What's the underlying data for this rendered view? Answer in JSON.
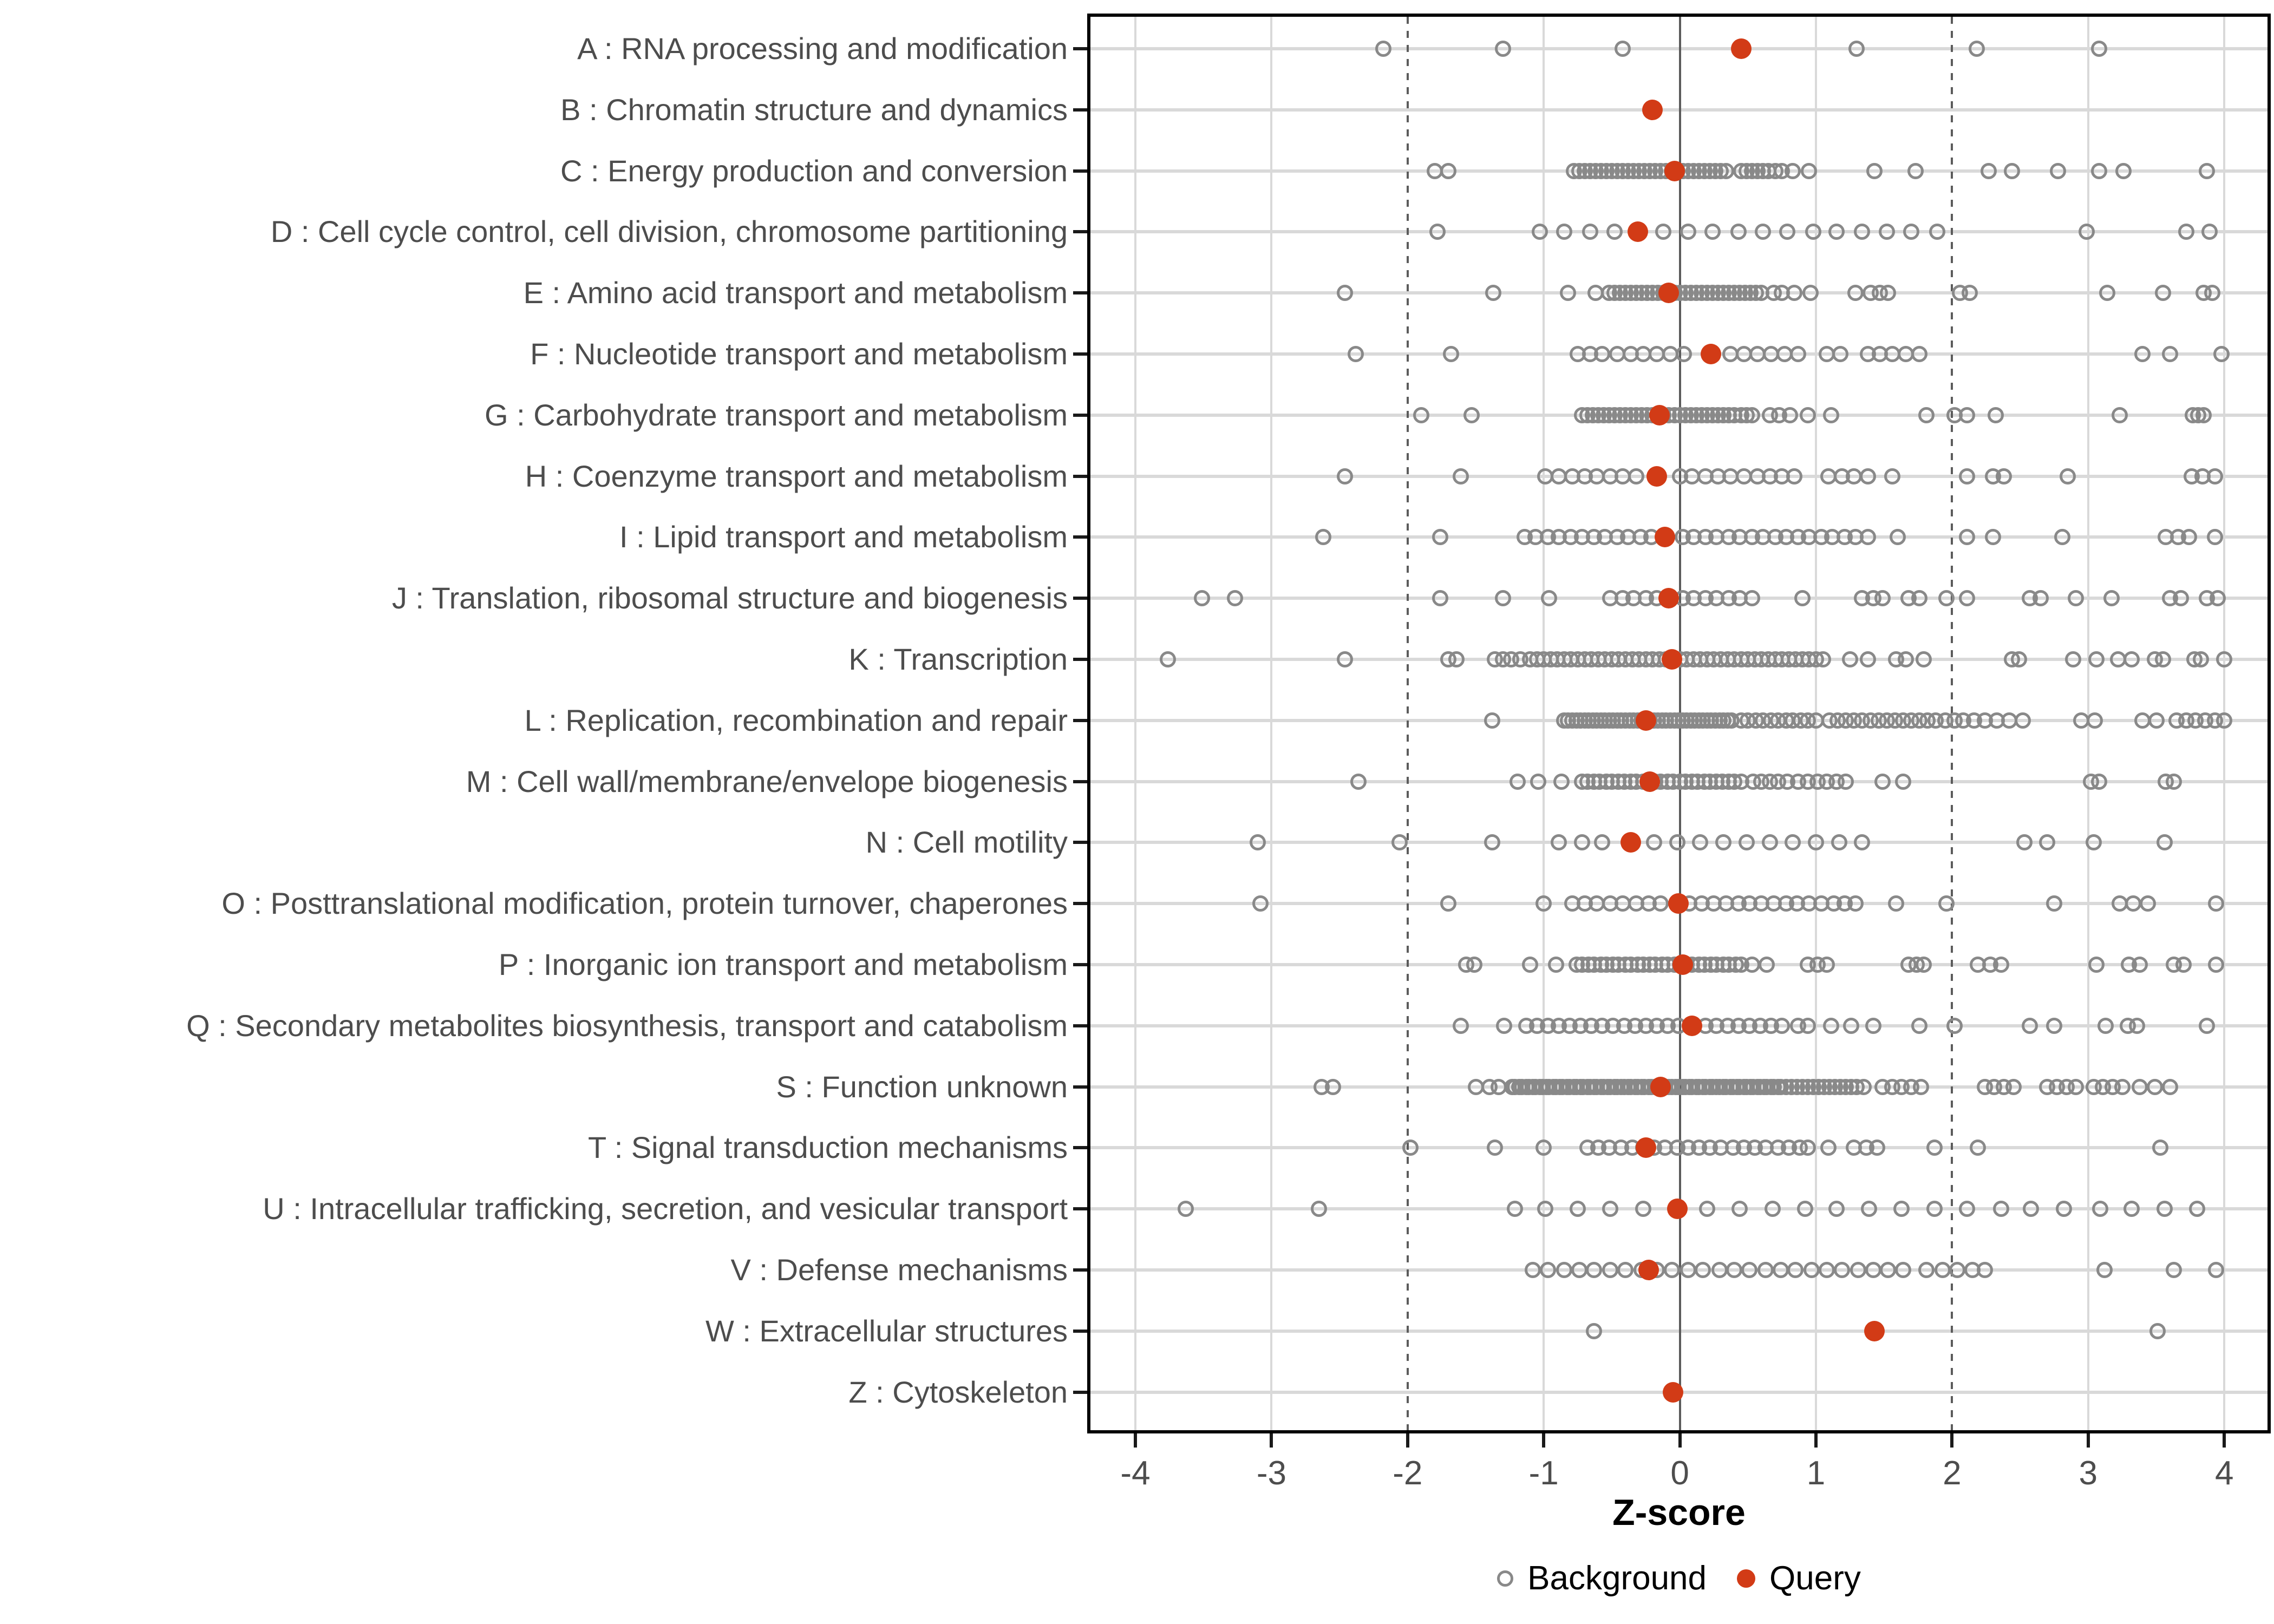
{
  "figure": {
    "xlabel": "Z-score",
    "legend": {
      "background_label": "Background",
      "query_label": "Query"
    },
    "colors": {
      "query_fill": "#d23b16",
      "background_stroke": "#898989",
      "grid_light": "#d9d9d9",
      "grid_dark": "#5c5c5c",
      "axis_text": "#4d4d4d",
      "panel_border": "#000000"
    }
  },
  "chart_data": {
    "type": "scatter",
    "title": "",
    "xlabel": "Z-score",
    "ylabel": "",
    "xlim": [
      -4.35,
      4.35
    ],
    "xticks": [
      -4,
      -3,
      -2,
      -1,
      0,
      1,
      2,
      3,
      4
    ],
    "grid": true,
    "reference_lines": {
      "solid_at": 0,
      "dashed_at": [
        -2,
        2
      ]
    },
    "legend_position": "bottom",
    "series_legend": [
      "Background",
      "Query"
    ],
    "rows": [
      {
        "id": "A",
        "label": "A : RNA processing and modification",
        "query": 0.45,
        "background": [
          -2.18,
          -1.3,
          -0.42,
          1.3,
          2.18,
          3.08
        ]
      },
      {
        "id": "B",
        "label": "B : Chromatin structure and dynamics",
        "query": -0.2,
        "background": []
      },
      {
        "id": "C",
        "label": "C : Energy production and conversion",
        "query": -0.04,
        "background": [
          -1.8,
          -1.7,
          -0.78,
          -0.74,
          -0.7,
          -0.66,
          -0.62,
          -0.58,
          -0.54,
          -0.5,
          -0.46,
          -0.42,
          -0.38,
          -0.34,
          -0.3,
          -0.26,
          -0.22,
          -0.18,
          -0.14,
          -0.1,
          -0.06,
          -0.02,
          0.02,
          0.06,
          0.1,
          0.14,
          0.18,
          0.22,
          0.26,
          0.3,
          0.34,
          0.45,
          0.49,
          0.53,
          0.57,
          0.61,
          0.65,
          0.7,
          0.75,
          0.83,
          0.95,
          1.43,
          1.73,
          2.27,
          2.44,
          2.78,
          3.08,
          3.26,
          3.87
        ]
      },
      {
        "id": "D",
        "label": "D : Cell cycle control, cell division, chromosome partitioning",
        "query": -0.31,
        "background": [
          -1.78,
          -1.03,
          -0.85,
          -0.66,
          -0.48,
          -0.12,
          0.06,
          0.24,
          0.43,
          0.61,
          0.79,
          0.98,
          1.15,
          1.34,
          1.52,
          1.7,
          1.89,
          2.99,
          3.72,
          3.89
        ]
      },
      {
        "id": "E",
        "label": "E : Amino acid transport and metabolism",
        "query": -0.08,
        "background": [
          -2.46,
          -1.37,
          -0.82,
          -0.62,
          -0.52,
          -0.48,
          -0.44,
          -0.4,
          -0.36,
          -0.32,
          -0.28,
          -0.24,
          -0.2,
          -0.16,
          -0.12,
          -0.08,
          -0.04,
          0.0,
          0.04,
          0.08,
          0.12,
          0.16,
          0.2,
          0.24,
          0.28,
          0.32,
          0.36,
          0.4,
          0.44,
          0.48,
          0.52,
          0.56,
          0.6,
          0.69,
          0.75,
          0.84,
          0.96,
          1.29,
          1.4,
          1.47,
          1.53,
          2.06,
          2.13,
          3.14,
          3.55,
          3.85,
          3.91
        ]
      },
      {
        "id": "F",
        "label": "F : Nucleotide transport and metabolism",
        "query": 0.23,
        "background": [
          -2.38,
          -1.68,
          -0.75,
          -0.66,
          -0.57,
          -0.46,
          -0.36,
          -0.27,
          -0.17,
          -0.07,
          0.03,
          0.37,
          0.47,
          0.57,
          0.67,
          0.77,
          0.87,
          1.08,
          1.18,
          1.38,
          1.47,
          1.56,
          1.66,
          1.76,
          3.4,
          3.6,
          3.98
        ]
      },
      {
        "id": "G",
        "label": "G : Carbohydrate transport and metabolism",
        "query": -0.15,
        "background": [
          -1.9,
          -1.53,
          -0.72,
          -0.68,
          -0.64,
          -0.6,
          -0.56,
          -0.52,
          -0.48,
          -0.44,
          -0.4,
          -0.36,
          -0.32,
          -0.28,
          -0.24,
          -0.2,
          -0.16,
          -0.12,
          -0.08,
          -0.04,
          0.0,
          0.04,
          0.08,
          0.12,
          0.16,
          0.2,
          0.24,
          0.28,
          0.32,
          0.36,
          0.4,
          0.45,
          0.49,
          0.53,
          0.66,
          0.73,
          0.81,
          0.94,
          1.11,
          1.81,
          2.02,
          2.11,
          2.32,
          3.23,
          3.77,
          3.81,
          3.85
        ]
      },
      {
        "id": "H",
        "label": "H : Coenzyme transport and metabolism",
        "query": -0.17,
        "background": [
          -2.46,
          -1.61,
          -0.99,
          -0.89,
          -0.79,
          -0.7,
          -0.61,
          -0.51,
          -0.42,
          -0.32,
          0.0,
          0.09,
          0.19,
          0.28,
          0.37,
          0.47,
          0.57,
          0.66,
          0.75,
          0.84,
          1.09,
          1.19,
          1.28,
          1.38,
          1.56,
          2.11,
          2.3,
          2.38,
          2.85,
          3.76,
          3.84,
          3.93
        ]
      },
      {
        "id": "I",
        "label": "I : Lipid transport and metabolism",
        "query": -0.11,
        "background": [
          -2.62,
          -1.76,
          -1.14,
          -1.06,
          -0.97,
          -0.89,
          -0.8,
          -0.72,
          -0.63,
          -0.55,
          -0.46,
          -0.38,
          -0.29,
          -0.21,
          0.02,
          0.1,
          0.19,
          0.27,
          0.36,
          0.44,
          0.53,
          0.61,
          0.7,
          0.78,
          0.87,
          0.95,
          1.04,
          1.12,
          1.21,
          1.29,
          1.38,
          1.6,
          2.11,
          2.3,
          2.81,
          3.57,
          3.66,
          3.74,
          3.93
        ]
      },
      {
        "id": "J",
        "label": "J : Translation, ribosomal structure and biogenesis",
        "query": -0.08,
        "background": [
          -3.51,
          -3.27,
          -1.76,
          -1.3,
          -0.96,
          -0.51,
          -0.42,
          -0.34,
          -0.25,
          -0.17,
          0.02,
          0.1,
          0.19,
          0.27,
          0.36,
          0.44,
          0.53,
          0.9,
          1.34,
          1.42,
          1.49,
          1.68,
          1.76,
          1.96,
          2.11,
          2.57,
          2.65,
          2.91,
          3.17,
          3.6,
          3.68,
          3.87,
          3.95
        ]
      },
      {
        "id": "K",
        "label": "K : Transcription",
        "query": -0.06,
        "background": [
          -3.76,
          -2.46,
          -1.7,
          -1.64,
          -1.36,
          -1.3,
          -1.24,
          -1.17,
          -1.1,
          -1.05,
          -1.0,
          -0.95,
          -0.9,
          -0.85,
          -0.8,
          -0.75,
          -0.7,
          -0.65,
          -0.6,
          -0.55,
          -0.5,
          -0.45,
          -0.4,
          -0.35,
          -0.3,
          -0.25,
          -0.2,
          -0.15,
          -0.1,
          -0.05,
          0.0,
          0.05,
          0.1,
          0.15,
          0.2,
          0.25,
          0.3,
          0.35,
          0.4,
          0.45,
          0.5,
          0.55,
          0.6,
          0.65,
          0.7,
          0.75,
          0.8,
          0.85,
          0.9,
          0.95,
          1.0,
          1.05,
          1.25,
          1.38,
          1.59,
          1.66,
          1.79,
          2.44,
          2.49,
          2.89,
          3.06,
          3.22,
          3.32,
          3.49,
          3.55,
          3.78,
          3.83,
          4.0
        ]
      },
      {
        "id": "L",
        "label": "L : Replication, recombination and repair",
        "query": -0.25,
        "background": [
          -1.38,
          -0.85,
          -0.82,
          -0.79,
          -0.76,
          -0.73,
          -0.7,
          -0.67,
          -0.64,
          -0.61,
          -0.58,
          -0.55,
          -0.52,
          -0.49,
          -0.46,
          -0.43,
          -0.4,
          -0.37,
          -0.34,
          -0.31,
          -0.28,
          -0.25,
          -0.22,
          -0.19,
          -0.16,
          -0.13,
          -0.1,
          -0.07,
          -0.04,
          -0.01,
          0.02,
          0.05,
          0.08,
          0.11,
          0.14,
          0.17,
          0.2,
          0.23,
          0.26,
          0.29,
          0.32,
          0.35,
          0.38,
          0.45,
          0.5,
          0.56,
          0.61,
          0.67,
          0.72,
          0.78,
          0.83,
          0.89,
          0.94,
          1.0,
          1.1,
          1.16,
          1.22,
          1.28,
          1.34,
          1.4,
          1.46,
          1.52,
          1.58,
          1.64,
          1.7,
          1.76,
          1.82,
          1.88,
          1.95,
          2.02,
          2.08,
          2.16,
          2.24,
          2.33,
          2.42,
          2.52,
          2.95,
          3.05,
          3.4,
          3.5,
          3.65,
          3.72,
          3.79,
          3.86,
          3.93,
          4.0
        ]
      },
      {
        "id": "M",
        "label": "M : Cell wall/membrane/envelope biogenesis",
        "query": -0.22,
        "background": [
          -2.36,
          -1.19,
          -1.04,
          -0.87,
          -0.72,
          -0.68,
          -0.63,
          -0.59,
          -0.54,
          -0.5,
          -0.45,
          -0.41,
          -0.36,
          -0.32,
          -0.27,
          -0.23,
          -0.18,
          -0.14,
          -0.09,
          -0.05,
          0.0,
          0.04,
          0.09,
          0.13,
          0.18,
          0.22,
          0.27,
          0.31,
          0.36,
          0.4,
          0.45,
          0.54,
          0.6,
          0.66,
          0.72,
          0.79,
          0.87,
          0.94,
          1.01,
          1.08,
          1.15,
          1.22,
          1.49,
          1.64,
          3.02,
          3.08,
          3.57,
          3.63
        ]
      },
      {
        "id": "N",
        "label": "N : Cell motility",
        "query": -0.36,
        "background": [
          -3.1,
          -2.06,
          -1.38,
          -0.89,
          -0.72,
          -0.57,
          -0.19,
          -0.02,
          0.15,
          0.32,
          0.49,
          0.66,
          0.83,
          1.0,
          1.17,
          1.34,
          2.53,
          2.7,
          3.04,
          3.56
        ]
      },
      {
        "id": "O",
        "label": "O : Posttranslational modification, protein turnover, chaperones",
        "query": -0.01,
        "background": [
          -3.08,
          -1.7,
          -1.0,
          -0.79,
          -0.7,
          -0.61,
          -0.51,
          -0.42,
          -0.32,
          -0.23,
          -0.14,
          0.07,
          0.16,
          0.25,
          0.34,
          0.43,
          0.51,
          0.6,
          0.69,
          0.78,
          0.86,
          0.95,
          1.04,
          1.13,
          1.21,
          1.29,
          1.59,
          1.96,
          2.75,
          3.23,
          3.33,
          3.44,
          3.94
        ]
      },
      {
        "id": "P",
        "label": "P : Inorganic ion transport and metabolism",
        "query": 0.02,
        "background": [
          -1.57,
          -1.51,
          -1.1,
          -0.91,
          -0.76,
          -0.72,
          -0.67,
          -0.63,
          -0.58,
          -0.54,
          -0.49,
          -0.45,
          -0.4,
          -0.36,
          -0.31,
          -0.27,
          -0.22,
          -0.18,
          -0.13,
          -0.09,
          -0.04,
          0.0,
          0.05,
          0.09,
          0.14,
          0.18,
          0.23,
          0.27,
          0.32,
          0.36,
          0.41,
          0.45,
          0.53,
          0.64,
          0.94,
          1.01,
          1.08,
          1.68,
          1.74,
          1.79,
          2.19,
          2.28,
          2.36,
          3.06,
          3.3,
          3.38,
          3.63,
          3.7,
          3.94
        ]
      },
      {
        "id": "Q",
        "label": "Q : Secondary metabolites biosynthesis, transport and catabolism",
        "query": 0.09,
        "background": [
          -1.61,
          -1.29,
          -1.13,
          -1.05,
          -0.97,
          -0.89,
          -0.81,
          -0.73,
          -0.65,
          -0.57,
          -0.49,
          -0.41,
          -0.33,
          -0.25,
          -0.17,
          -0.09,
          -0.01,
          0.19,
          0.27,
          0.35,
          0.43,
          0.51,
          0.59,
          0.67,
          0.75,
          0.87,
          0.94,
          1.11,
          1.26,
          1.42,
          1.76,
          2.02,
          2.57,
          2.75,
          3.13,
          3.29,
          3.36,
          3.87
        ]
      },
      {
        "id": "S",
        "label": "S : Function unknown",
        "query": -0.14,
        "background": [
          -2.63,
          -2.55,
          -1.5,
          -1.4,
          -1.33,
          -1.23,
          -1.21,
          -1.18,
          -1.16,
          -1.13,
          -1.11,
          -1.08,
          -1.06,
          -1.03,
          -1.01,
          -0.98,
          -0.96,
          -0.93,
          -0.91,
          -0.88,
          -0.86,
          -0.83,
          -0.81,
          -0.78,
          -0.76,
          -0.73,
          -0.71,
          -0.68,
          -0.66,
          -0.63,
          -0.61,
          -0.58,
          -0.56,
          -0.53,
          -0.51,
          -0.48,
          -0.46,
          -0.43,
          -0.41,
          -0.38,
          -0.36,
          -0.33,
          -0.31,
          -0.28,
          -0.26,
          -0.23,
          -0.21,
          -0.18,
          -0.16,
          -0.13,
          -0.11,
          -0.08,
          -0.06,
          -0.03,
          -0.01,
          0.02,
          0.04,
          0.07,
          0.09,
          0.12,
          0.14,
          0.17,
          0.19,
          0.22,
          0.24,
          0.27,
          0.29,
          0.32,
          0.34,
          0.37,
          0.39,
          0.42,
          0.44,
          0.47,
          0.49,
          0.52,
          0.54,
          0.57,
          0.59,
          0.62,
          0.64,
          0.67,
          0.69,
          0.72,
          0.74,
          0.78,
          0.82,
          0.86,
          0.9,
          0.94,
          0.98,
          1.02,
          1.06,
          1.1,
          1.14,
          1.18,
          1.22,
          1.26,
          1.3,
          1.35,
          1.49,
          1.56,
          1.63,
          1.7,
          1.77,
          2.24,
          2.31,
          2.38,
          2.45,
          2.7,
          2.77,
          2.84,
          2.91,
          3.04,
          3.11,
          3.18,
          3.25,
          3.38,
          3.49,
          3.6
        ]
      },
      {
        "id": "T",
        "label": "T : Signal transduction mechanisms",
        "query": -0.25,
        "background": [
          -1.98,
          -1.36,
          -1.0,
          -0.68,
          -0.6,
          -0.52,
          -0.43,
          -0.35,
          -0.27,
          -0.19,
          -0.11,
          -0.02,
          0.06,
          0.14,
          0.22,
          0.3,
          0.39,
          0.47,
          0.55,
          0.63,
          0.72,
          0.8,
          0.88,
          0.94,
          1.09,
          1.28,
          1.37,
          1.45,
          1.87,
          2.19,
          3.53
        ]
      },
      {
        "id": "U",
        "label": "U : Intracellular trafficking, secretion, and vesicular transport",
        "query": -0.02,
        "background": [
          -3.63,
          -2.65,
          -1.21,
          -0.99,
          -0.75,
          -0.51,
          -0.27,
          0.2,
          0.44,
          0.68,
          0.92,
          1.15,
          1.39,
          1.63,
          1.87,
          2.11,
          2.36,
          2.58,
          2.82,
          3.09,
          3.32,
          3.56,
          3.8
        ]
      },
      {
        "id": "V",
        "label": "V : Defense mechanisms",
        "query": -0.23,
        "background": [
          -1.08,
          -0.97,
          -0.85,
          -0.74,
          -0.63,
          -0.51,
          -0.4,
          -0.28,
          -0.17,
          -0.06,
          0.06,
          0.17,
          0.29,
          0.4,
          0.51,
          0.63,
          0.74,
          0.85,
          0.97,
          1.08,
          1.19,
          1.31,
          1.42,
          1.53,
          1.64,
          1.81,
          1.93,
          2.04,
          2.15,
          2.24,
          3.12,
          3.63,
          3.94
        ]
      },
      {
        "id": "W",
        "label": "W : Extracellular structures",
        "query": 1.43,
        "background": [
          -0.63,
          3.51
        ]
      },
      {
        "id": "Z",
        "label": "Z : Cytoskeleton",
        "query": -0.05,
        "background": []
      }
    ]
  }
}
